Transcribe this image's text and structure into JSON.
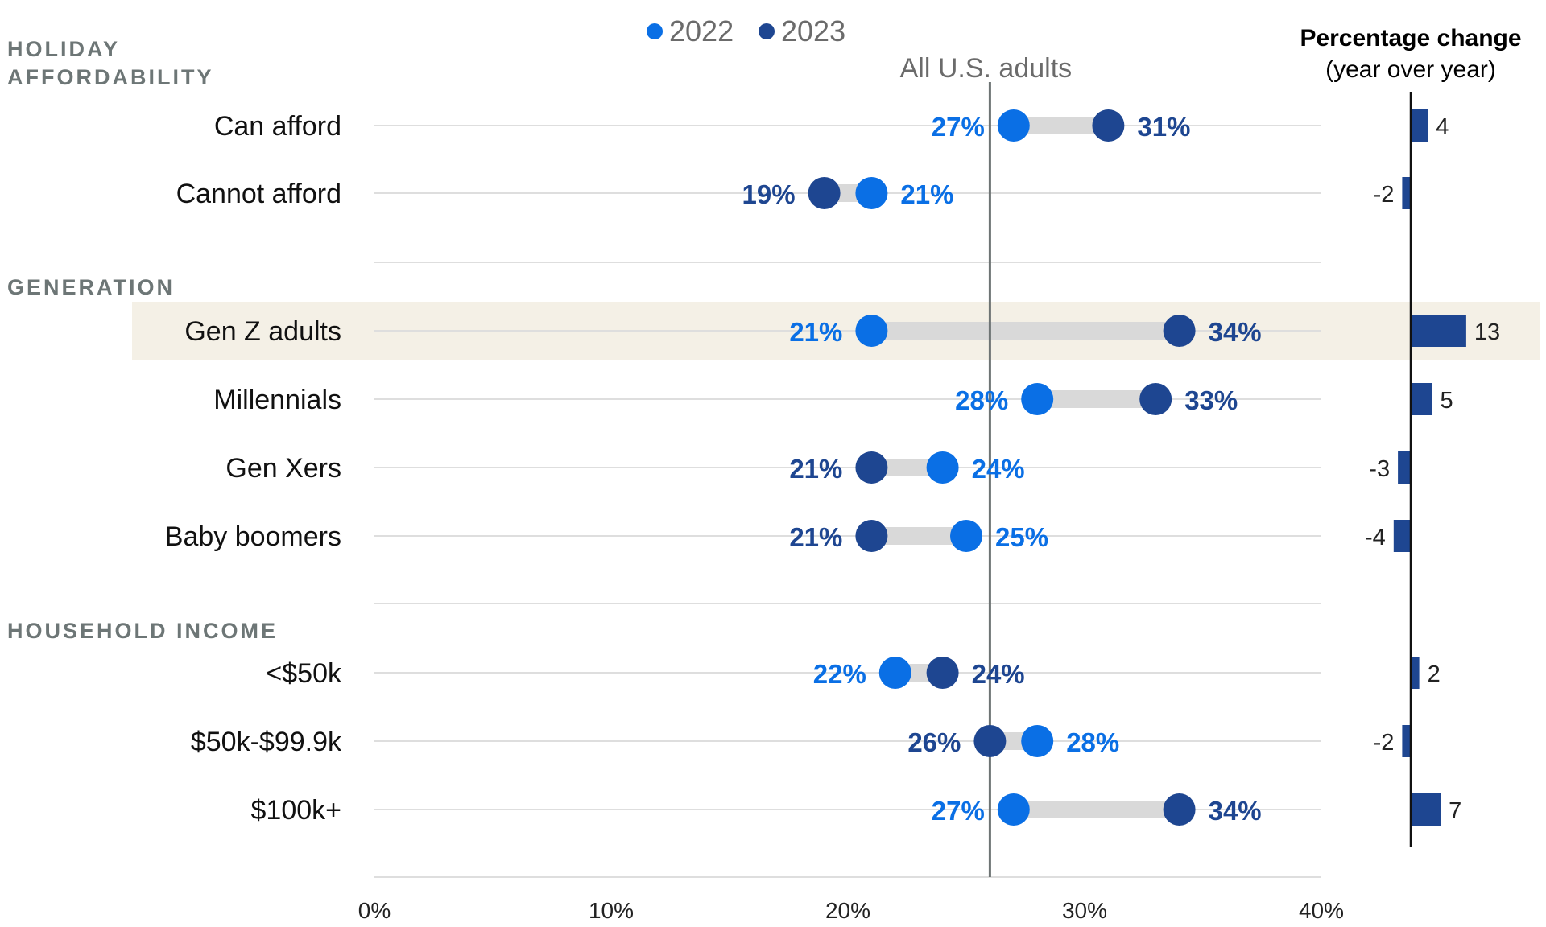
{
  "colors": {
    "y2022": "#0a6fe5",
    "y2023": "#1e4691",
    "connector": "#d9d9d9",
    "gridline": "#dedede",
    "reference_line": "#6e7474",
    "highlight_band": "#f4f0e6",
    "change_bar": "#1e4691",
    "group_heading": "#6d7676"
  },
  "legend": [
    {
      "label": "2022",
      "color_key": "y2022"
    },
    {
      "label": "2023",
      "color_key": "y2023"
    }
  ],
  "change_panel": {
    "title": "Percentage change",
    "subtitle": "(year over year)"
  },
  "chart_data": {
    "type": "dumbbell",
    "xlim": [
      0,
      40
    ],
    "x_ticks": [
      "0%",
      "10%",
      "20%",
      "30%",
      "40%"
    ],
    "x_tick_values": [
      0,
      10,
      20,
      30,
      40
    ],
    "reference": {
      "label": "All U.S. adults",
      "value": 26
    },
    "series_names": [
      "2022",
      "2023"
    ],
    "groups": [
      {
        "heading": "HOLIDAY AFFORDABILITY",
        "rows": [
          {
            "label": "Can afford",
            "v2022": 27,
            "v2023": 31,
            "change": 4,
            "change_label": "4",
            "highlight": false
          },
          {
            "label": "Cannot afford",
            "v2022": 21,
            "v2023": 19,
            "change": -2,
            "change_label": "-2",
            "highlight": false
          }
        ]
      },
      {
        "heading": "GENERATION",
        "rows": [
          {
            "label": "Gen Z adults",
            "v2022": 21,
            "v2023": 34,
            "change": 13,
            "change_label": "13",
            "highlight": true
          },
          {
            "label": "Millennials",
            "v2022": 28,
            "v2023": 33,
            "change": 5,
            "change_label": "5",
            "highlight": false
          },
          {
            "label": "Gen Xers",
            "v2022": 24,
            "v2023": 21,
            "change": -3,
            "change_label": "-3",
            "highlight": false
          },
          {
            "label": "Baby boomers",
            "v2022": 25,
            "v2023": 21,
            "change": -4,
            "change_label": "-4",
            "highlight": false
          }
        ]
      },
      {
        "heading": "HOUSEHOLD INCOME",
        "rows": [
          {
            "label": "<$50k",
            "v2022": 22,
            "v2023": 24,
            "change": 2,
            "change_label": "2",
            "highlight": false
          },
          {
            "label": "$50k-$99.9k",
            "v2022": 28,
            "v2023": 26,
            "change": -2,
            "change_label": "-2",
            "highlight": false
          },
          {
            "label": "$100k+",
            "v2022": 27,
            "v2023": 34,
            "change": 7,
            "change_label": "7",
            "highlight": false
          }
        ]
      }
    ]
  }
}
